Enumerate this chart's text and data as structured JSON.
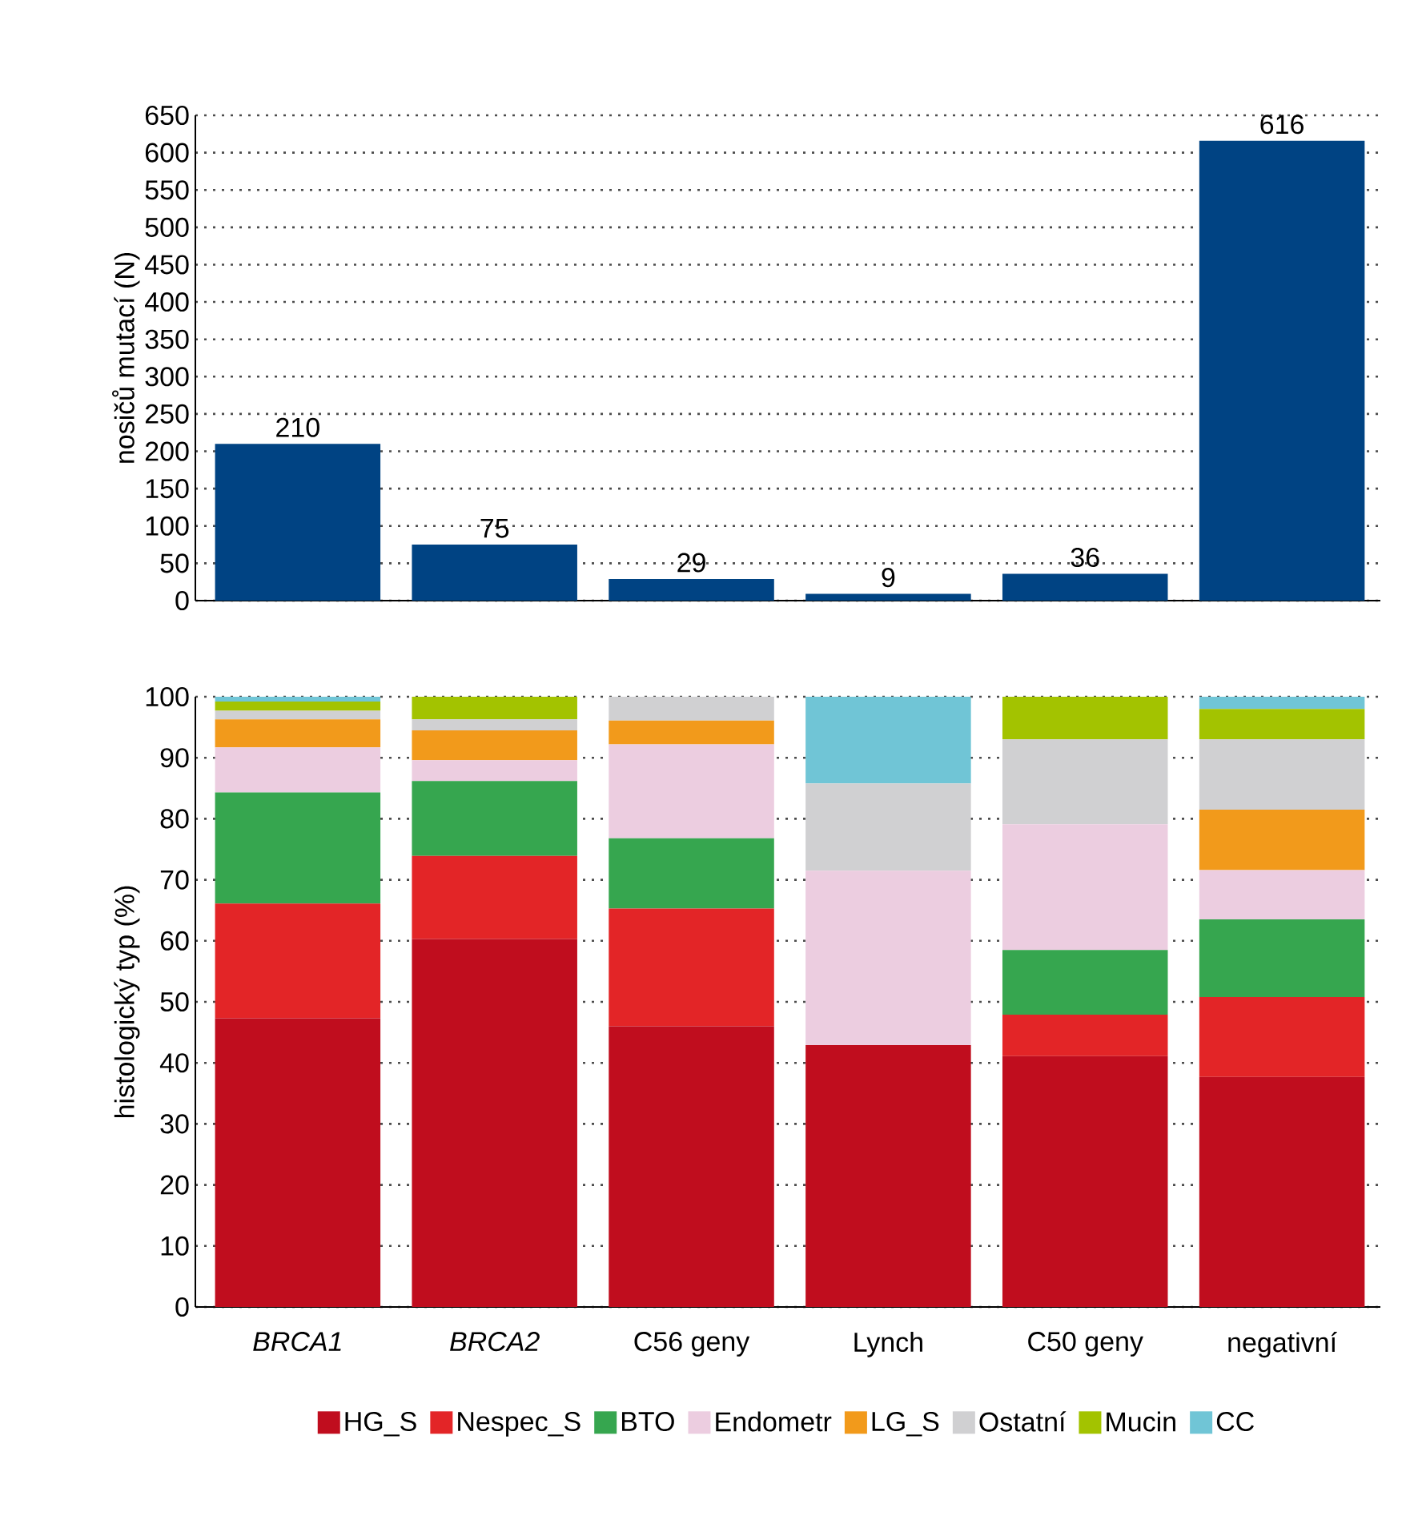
{
  "chart_data": [
    {
      "type": "bar",
      "ylabel": "nosičů mutací (N)",
      "categories": [
        null,
        null,
        null,
        null,
        null,
        null
      ],
      "values": [
        210,
        75,
        29,
        9,
        36,
        616
      ],
      "color": "#004383",
      "data_labels": true,
      "ylim": [
        0,
        650
      ],
      "yticks": [
        0,
        50,
        100,
        150,
        200,
        250,
        300,
        350,
        400,
        450,
        500,
        550,
        600,
        650
      ],
      "grid": "y",
      "tick_labels": "y"
    },
    {
      "type": "bar",
      "stacked": true,
      "ylabel": "histologický typ (%)",
      "categories": [
        "*BRCA1*",
        "*BRCA2*",
        "C56 geny",
        "Lynch",
        "C50 geny",
        "negativní"
      ],
      "series": [
        {
          "name": "HG_S",
          "color": "#c00d1e",
          "values": [
            47.3,
            60.3,
            46.0,
            42.9,
            41.1,
            37.7
          ]
        },
        {
          "name": "Nespec_S",
          "color": "#e32527",
          "values": [
            18.8,
            13.6,
            19.3,
            0,
            6.8,
            13.1
          ]
        },
        {
          "name": "BTO",
          "color": "#36a64f",
          "values": [
            18.2,
            12.3,
            11.5,
            0,
            10.6,
            12.7
          ]
        },
        {
          "name": "Endometr",
          "color": "#eccde0",
          "values": [
            7.4,
            3.4,
            15.4,
            28.6,
            20.6,
            8.1
          ]
        },
        {
          "name": "LG_S",
          "color": "#f29a1b",
          "values": [
            4.6,
            4.9,
            3.9,
            0,
            0,
            9.9
          ]
        },
        {
          "name": "Ostatní",
          "color": "#d0d0d2",
          "values": [
            1.4,
            1.8,
            3.9,
            14.3,
            13.9,
            11.5
          ]
        },
        {
          "name": "Mucin",
          "color": "#a3c300",
          "values": [
            1.5,
            3.7,
            0,
            0,
            7.0,
            5.0
          ]
        },
        {
          "name": "CC",
          "color": "#70c5d6",
          "values": [
            0.8,
            0,
            0,
            14.2,
            0,
            2.0
          ]
        }
      ],
      "ylim": [
        0,
        100
      ],
      "yticks": [
        0,
        10,
        20,
        30,
        40,
        50,
        60,
        70,
        80,
        90,
        100
      ],
      "grid": "y",
      "legend": "bottom"
    }
  ]
}
